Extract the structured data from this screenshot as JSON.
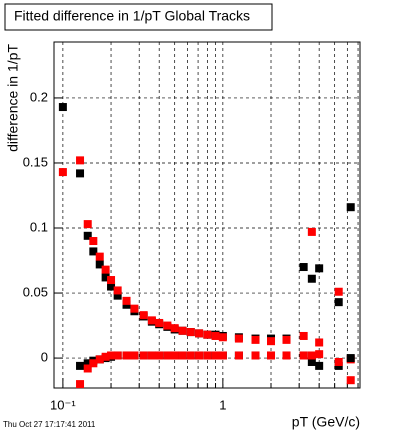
{
  "chart_data": {
    "type": "scatter",
    "title": "Fitted difference in 1/pT  Global Tracks",
    "ylabel": "difference in 1/pT",
    "xlabel": "pT (GeV/c)",
    "footer": "Thu Oct 27 17:17:41 2011",
    "xlog": true,
    "grid": true,
    "xlim": [
      0.088,
      7.2
    ],
    "ylim": [
      -0.023,
      0.243
    ],
    "xticks": [
      {
        "value": 0.1,
        "label": "10⁻¹"
      },
      1
    ],
    "xticks_minor": [
      0.2,
      0.3,
      0.4,
      0.5,
      0.6,
      0.7,
      0.8,
      0.9,
      2,
      3,
      4,
      5,
      6,
      7
    ],
    "yticks": [
      0,
      0.05,
      0.1,
      0.15,
      0.2
    ],
    "x": [
      0.1,
      0.128,
      0.143,
      0.155,
      0.17,
      0.185,
      0.2,
      0.22,
      0.25,
      0.28,
      0.32,
      0.36,
      0.4,
      0.45,
      0.5,
      0.56,
      0.63,
      0.71,
      0.8,
      0.9,
      1.0,
      1.26,
      1.6,
      2.0,
      2.5,
      3.2,
      3.6,
      4.0,
      4.5,
      5.3,
      6.3
    ],
    "series": [
      {
        "color": "#000000",
        "values": [
          0.193,
          0.142,
          0.094,
          0.082,
          0.072,
          0.062,
          0.055,
          0.048,
          0.041,
          0.036,
          0.032,
          0.028,
          0.026,
          0.024,
          0.022,
          0.021,
          0.02,
          0.019,
          0.018,
          0.018,
          0.017,
          0.016,
          0.015,
          0.015,
          0.015,
          0.07,
          0.061,
          0.069,
          null,
          0.043,
          0.116
        ]
      },
      {
        "color": "#ff0000",
        "values": [
          0.143,
          0.152,
          0.103,
          0.09,
          0.078,
          0.068,
          0.06,
          0.052,
          0.044,
          0.038,
          0.033,
          0.029,
          0.027,
          0.025,
          0.023,
          0.021,
          0.02,
          0.019,
          0.018,
          0.017,
          0.016,
          0.015,
          0.014,
          0.013,
          0.014,
          0.017,
          0.097,
          0.012,
          null,
          0.051,
          -0.001
        ]
      },
      {
        "color": "#000000",
        "values": [
          null,
          -0.006,
          -0.004,
          -0.002,
          -0.001,
          0,
          0.001,
          0.002,
          0.002,
          0.002,
          0.002,
          0.002,
          0.002,
          0.002,
          0.002,
          0.002,
          0.002,
          0.002,
          0.002,
          0.002,
          0.002,
          0.002,
          0.002,
          0.002,
          0.002,
          0.002,
          -0.003,
          -0.006,
          null,
          -0.006,
          0
        ]
      },
      {
        "color": "#ff0000",
        "values": [
          null,
          -0.02,
          -0.008,
          -0.004,
          -0.001,
          0.001,
          0.002,
          0.002,
          0.002,
          0.002,
          0.002,
          0.002,
          0.002,
          0.002,
          0.002,
          0.002,
          0.002,
          0.002,
          0.002,
          0.002,
          0.002,
          0.002,
          0.002,
          0.002,
          0.002,
          0.002,
          0.002,
          0.003,
          null,
          -0.003,
          -0.017
        ]
      }
    ]
  }
}
